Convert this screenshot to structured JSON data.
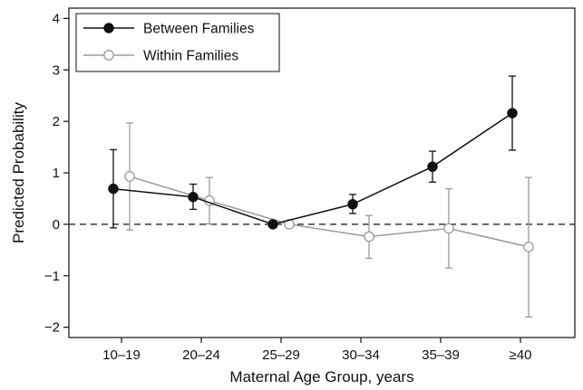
{
  "chart_data": {
    "type": "line",
    "title": "",
    "xlabel": "Maternal Age Group, years",
    "ylabel": "Predicted Probability",
    "categories": [
      "10–19",
      "20–24",
      "25–29",
      "30–34",
      "35–39",
      "≥40"
    ],
    "yticks": [
      "4",
      "3",
      "2",
      "1",
      "0",
      "−1",
      "−2"
    ],
    "ylim": [
      -2.2,
      4.2
    ],
    "reference_line": 0,
    "grid": false,
    "legend_position": "top-left",
    "series": [
      {
        "name": "Between Families",
        "color": "#111111",
        "marker": "filled-circle",
        "values": [
          0.69,
          0.53,
          0.0,
          0.39,
          1.12,
          2.16
        ],
        "lower": [
          -0.07,
          0.29,
          0.0,
          0.21,
          0.82,
          1.44
        ],
        "upper": [
          1.45,
          0.78,
          0.0,
          0.58,
          1.42,
          2.88
        ]
      },
      {
        "name": "Within Families",
        "color": "#9b9b9b",
        "marker": "open-circle",
        "values": [
          0.93,
          0.46,
          0.0,
          -0.24,
          -0.08,
          -0.44
        ],
        "lower": [
          -0.11,
          0.01,
          0.0,
          -0.66,
          -0.85,
          -1.8
        ],
        "upper": [
          1.97,
          0.91,
          0.0,
          0.17,
          0.69,
          0.91
        ]
      }
    ]
  }
}
